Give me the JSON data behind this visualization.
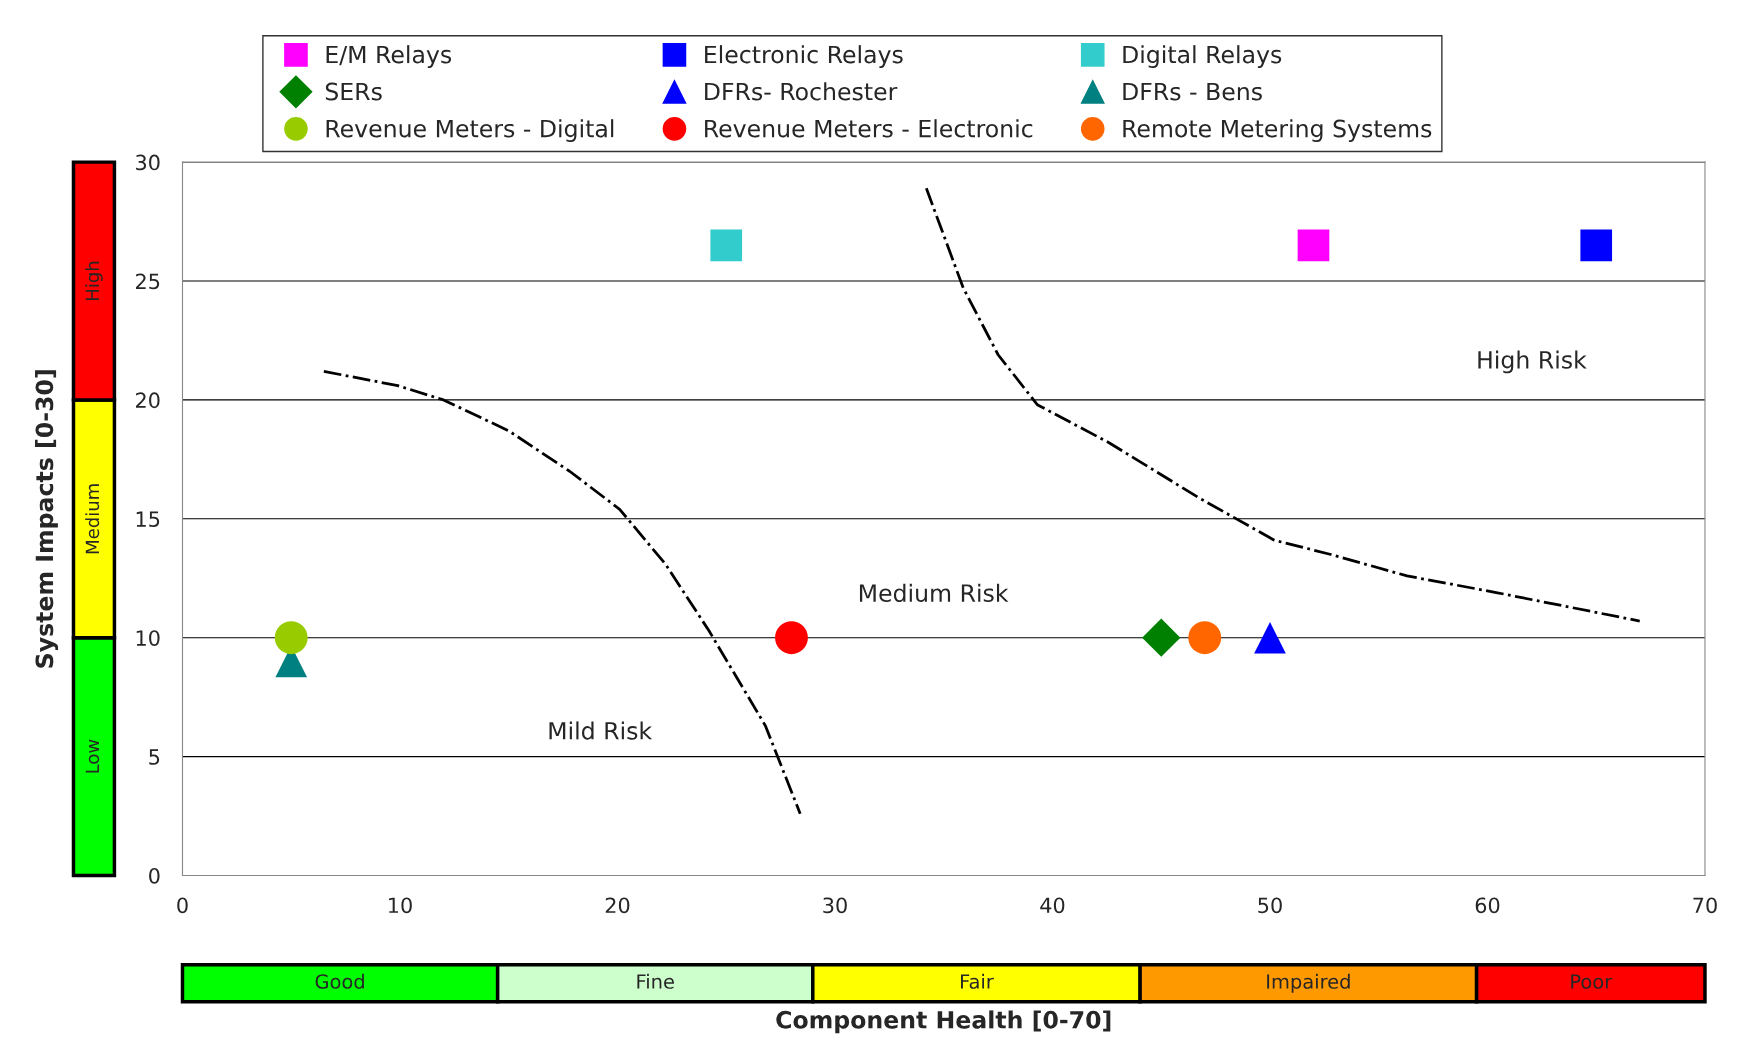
{
  "chart_data": {
    "type": "scatter",
    "xlabel": "Component Health [0-70]",
    "ylabel": "System Impacts [0-30]",
    "xlim": [
      0,
      70
    ],
    "ylim": [
      0,
      30
    ],
    "xticks": [
      0,
      10,
      20,
      30,
      40,
      50,
      60,
      70
    ],
    "yticks": [
      0,
      5,
      10,
      15,
      20,
      25,
      30
    ],
    "grid": "y",
    "legend": "top",
    "series": [
      {
        "name": "E/M Relays",
        "color": "#ff00ff",
        "marker": "square",
        "x": [
          52
        ],
        "values": [
          26.5
        ]
      },
      {
        "name": "Electronic Relays",
        "color": "#0000ff",
        "marker": "square",
        "x": [
          65
        ],
        "values": [
          26.5
        ]
      },
      {
        "name": "Digital Relays",
        "color": "#33cccc",
        "marker": "square",
        "x": [
          25
        ],
        "values": [
          26.5
        ]
      },
      {
        "name": "SERs",
        "color": "#008000",
        "marker": "diamond",
        "x": [
          45
        ],
        "values": [
          10
        ]
      },
      {
        "name": "DFRs- Rochester",
        "color": "#0000ff",
        "marker": "triangle",
        "x": [
          50
        ],
        "values": [
          10
        ]
      },
      {
        "name": "DFRs - Bens",
        "color": "#008080",
        "marker": "triangle",
        "x": [
          5
        ],
        "values": [
          9
        ]
      },
      {
        "name": "Revenue Meters - Digital",
        "color": "#99cc00",
        "marker": "circle",
        "x": [
          5
        ],
        "values": [
          10
        ]
      },
      {
        "name": "Revenue Meters - Electronic",
        "color": "#ff0000",
        "marker": "circle",
        "x": [
          28
        ],
        "values": [
          10
        ]
      },
      {
        "name": "Remote Metering Systems",
        "color": "#ff6600",
        "marker": "circle",
        "x": [
          47
        ],
        "values": [
          10
        ]
      },
      {
        "type": "line",
        "color": "#000000",
        "line_style": "dashdot",
        "marker": "none",
        "x": [
          6.5,
          9.9,
          12,
          15,
          17.8,
          20.1,
          22.2,
          24.2,
          26.8,
          28.4
        ],
        "values": [
          21.2,
          20.6,
          20.0,
          18.7,
          17.0,
          15.4,
          13.1,
          10.3,
          6.3,
          2.6
        ]
      },
      {
        "type": "line",
        "color": "#000000",
        "line_style": "dashdot",
        "marker": "none",
        "x": [
          34.2,
          35.9,
          37.5,
          39.3,
          42.6,
          46.7,
          50.2,
          52.8,
          56.3,
          60.4,
          67.0
        ],
        "values": [
          28.9,
          24.7,
          21.9,
          19.8,
          18.2,
          15.9,
          14.1,
          13.5,
          12.6,
          11.9,
          10.7
        ]
      }
    ],
    "annotations": [
      "High Risk",
      "Medium Risk",
      "Mild Risk",
      "Low",
      "Medium",
      "High",
      "Good",
      "Fine",
      "Fair",
      "Impaired",
      "Poor"
    ]
  }
}
